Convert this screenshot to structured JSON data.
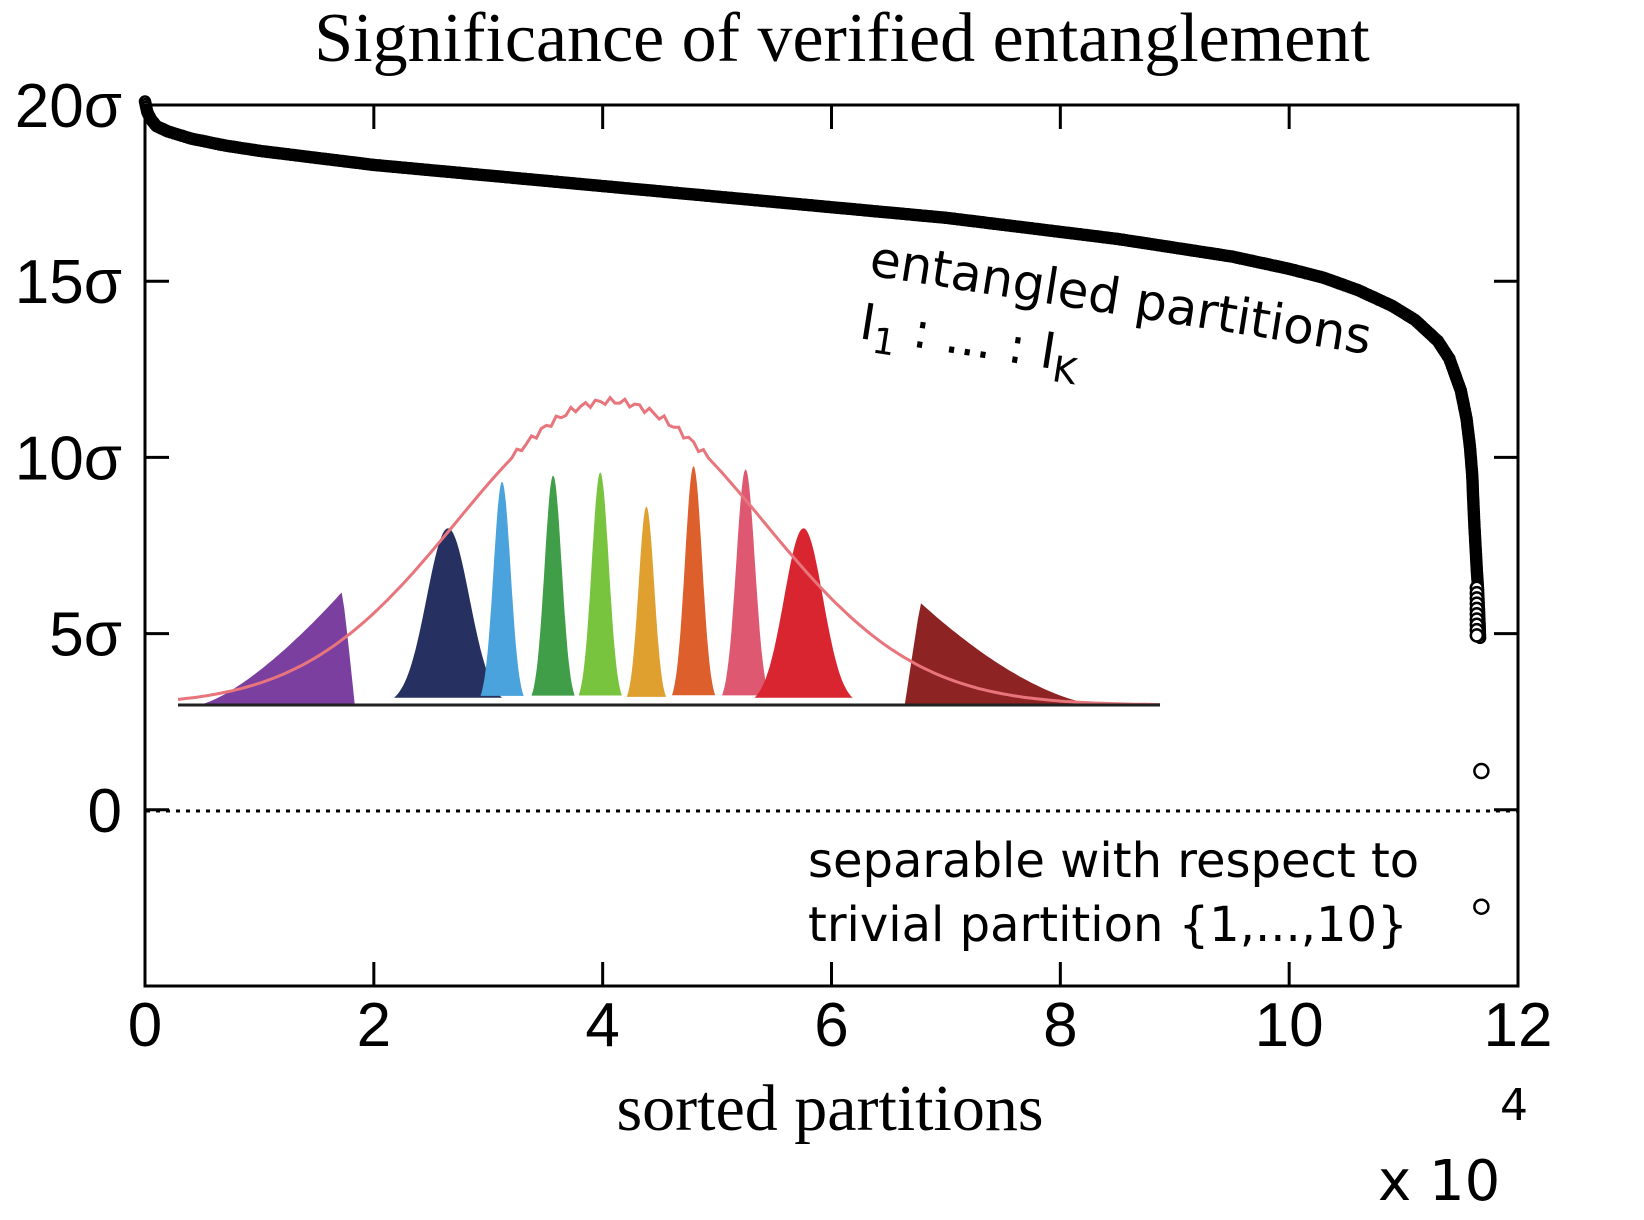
{
  "chart_data": {
    "type": "scatter",
    "title": "Significance of verified entanglement",
    "xlabel": "sorted partitions",
    "ylabel": "",
    "x_multiplier": "x 10",
    "x_multiplier_exp": "4",
    "xlim": [
      0,
      12
    ],
    "ylim": [
      -5,
      20
    ],
    "x_ticks": [
      0,
      2,
      4,
      6,
      8,
      10,
      12
    ],
    "x_tick_labels": [
      "0",
      "2",
      "4",
      "6",
      "8",
      "10",
      "12"
    ],
    "y_ticks": [
      0,
      5,
      10,
      15,
      20
    ],
    "y_tick_labels": [
      "0",
      "5σ",
      "10σ",
      "15σ",
      "20σ"
    ],
    "grid": false,
    "reference_line": {
      "y": 0,
      "style": "dotted"
    },
    "series": [
      {
        "marker": "open-circle",
        "color": "#000000",
        "x": [
          0.0,
          0.02,
          0.05,
          0.1,
          0.2,
          0.4,
          0.7,
          1.0,
          1.5,
          2.0,
          2.5,
          3.0,
          3.5,
          4.0,
          4.5,
          5.0,
          5.5,
          6.0,
          6.5,
          7.0,
          7.5,
          8.0,
          8.5,
          9.0,
          9.5,
          10.0,
          10.3,
          10.6,
          10.9,
          11.1,
          11.3,
          11.4,
          11.5,
          11.55,
          11.58,
          11.6,
          11.61,
          11.62,
          11.63,
          11.64,
          11.65,
          11.66,
          11.67,
          11.68
        ],
        "y": [
          20.1,
          19.8,
          19.6,
          19.4,
          19.25,
          19.05,
          18.85,
          18.7,
          18.5,
          18.3,
          18.15,
          18.0,
          17.85,
          17.7,
          17.55,
          17.4,
          17.25,
          17.1,
          16.95,
          16.8,
          16.6,
          16.4,
          16.2,
          15.95,
          15.7,
          15.35,
          15.1,
          14.75,
          14.3,
          13.9,
          13.3,
          12.8,
          11.9,
          11.1,
          10.3,
          9.5,
          8.7,
          8.0,
          7.4,
          6.8,
          6.3,
          5.6,
          4.8,
          1.1
        ]
      }
    ],
    "annotations": [
      {
        "text": "entangled partitions"
      },
      {
        "text": "I",
        "sub": "1",
        "mid": " : ... : ",
        "text2": "I",
        "sub2": "K"
      },
      {
        "text": "separable with respect to"
      },
      {
        "text": "trivial partition {1,...,10}"
      }
    ],
    "inset": {
      "type": "area",
      "envelope_color": "#e8747c",
      "peak_colors": [
        "#7b3fa0",
        "#263161",
        "#4aa3dc",
        "#3f9e47",
        "#78c43f",
        "#e0a030",
        "#dc5f2c",
        "#dd5870",
        "#d9252f",
        "#8e2324"
      ],
      "peak_heights": [
        0.41,
        0.57,
        0.72,
        0.74,
        0.75,
        0.64,
        0.77,
        0.76,
        0.57,
        0.33
      ]
    }
  }
}
